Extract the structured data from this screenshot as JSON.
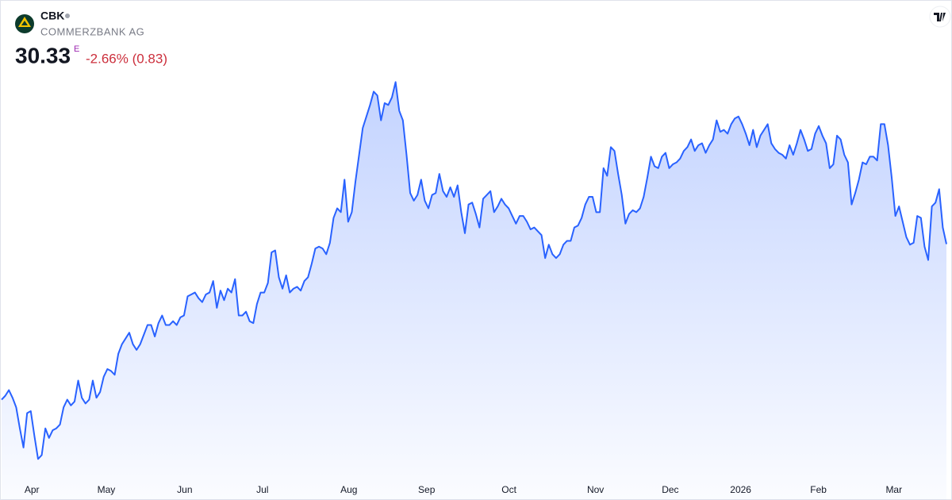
{
  "header": {
    "symbol": "CBK",
    "name": "COMMERZBANK AG",
    "price": "30.33",
    "price_flag": "E",
    "change": "-2.66% (0.83)"
  },
  "chart_data": {
    "type": "area",
    "series": [
      {
        "color": "#2962ff",
        "values": [
          22.2,
          22.4,
          22.7,
          22.3,
          21.8,
          20.7,
          19.7,
          21.5,
          21.6,
          20.3,
          19.1,
          19.3,
          20.7,
          20.2,
          20.6,
          20.7,
          20.9,
          21.8,
          22.2,
          21.9,
          22.1,
          23.2,
          22.3,
          22.0,
          22.2,
          23.2,
          22.3,
          22.6,
          23.4,
          23.8,
          23.7,
          23.5,
          24.6,
          25.1,
          25.4,
          25.7,
          25.1,
          24.8,
          25.1,
          25.6,
          26.1,
          26.1,
          25.5,
          26.2,
          26.6,
          26.1,
          26.1,
          26.3,
          26.1,
          26.5,
          26.6,
          27.6,
          27.7,
          27.8,
          27.5,
          27.3,
          27.7,
          27.8,
          28.4,
          27.0,
          27.9,
          27.4,
          28.0,
          27.8,
          28.5,
          26.6,
          26.6,
          26.8,
          26.3,
          26.2,
          27.2,
          27.8,
          27.8,
          28.3,
          29.9,
          30.0,
          28.6,
          28.0,
          28.7,
          27.8,
          28.0,
          28.1,
          27.9,
          28.4,
          28.6,
          29.3,
          30.1,
          30.2,
          30.1,
          29.8,
          30.4,
          31.7,
          32.2,
          32.0,
          33.7,
          31.5,
          32.0,
          33.6,
          35.0,
          36.4,
          37.0,
          37.6,
          38.3,
          38.1,
          36.8,
          37.7,
          37.6,
          38.0,
          38.8,
          37.3,
          36.8,
          35.0,
          33.0,
          32.6,
          32.9,
          33.7,
          32.6,
          32.2,
          32.9,
          33.0,
          34.0,
          33.1,
          32.8,
          33.3,
          32.8,
          33.4,
          32.0,
          30.9,
          32.4,
          32.5,
          31.9,
          31.2,
          32.7,
          32.9,
          33.1,
          32.0,
          32.3,
          32.7,
          32.4,
          32.2,
          31.8,
          31.4,
          31.8,
          31.8,
          31.5,
          31.1,
          31.2,
          31.0,
          30.8,
          29.6,
          30.3,
          29.8,
          29.6,
          29.8,
          30.3,
          30.5,
          30.5,
          31.2,
          31.3,
          31.7,
          32.4,
          32.8,
          32.8,
          32.0,
          32.0,
          34.3,
          33.9,
          35.4,
          35.2,
          34.0,
          32.9,
          31.4,
          31.9,
          32.1,
          32.0,
          32.2,
          32.8,
          33.8,
          34.9,
          34.4,
          34.3,
          34.9,
          35.1,
          34.3,
          34.5,
          34.6,
          34.8,
          35.2,
          35.4,
          35.8,
          35.2,
          35.5,
          35.6,
          35.1,
          35.5,
          35.8,
          36.8,
          36.2,
          36.3,
          36.1,
          36.6,
          36.9,
          37.0,
          36.6,
          36.1,
          35.5,
          36.3,
          35.4,
          36.0,
          36.3,
          36.6,
          35.6,
          35.3,
          35.1,
          35.0,
          34.8,
          35.5,
          35.0,
          35.6,
          36.3,
          35.8,
          35.2,
          35.3,
          36.1,
          36.5,
          36.0,
          35.6,
          34.3,
          34.5,
          36.0,
          35.8,
          35.0,
          34.6,
          32.4,
          33.0,
          33.7,
          34.6,
          34.5,
          34.9,
          34.9,
          34.7,
          36.6,
          36.6,
          35.5,
          33.8,
          31.8,
          32.3,
          31.5,
          30.7,
          30.3,
          30.4,
          31.8,
          31.7,
          30.2,
          29.5,
          32.3,
          32.5,
          33.2,
          31.2,
          30.33
        ]
      }
    ],
    "xlim": [
      0,
      259
    ],
    "ylim": [
      18.2,
      40.6
    ],
    "xticks": [
      {
        "value": 8.3,
        "label": "Apr"
      },
      {
        "value": 28.7,
        "label": "May"
      },
      {
        "value": 50.2,
        "label": "Jun"
      },
      {
        "value": 71.5,
        "label": "Jul"
      },
      {
        "value": 95.2,
        "label": "Aug"
      },
      {
        "value": 116.5,
        "label": "Sep"
      },
      {
        "value": 139.1,
        "label": "Oct"
      },
      {
        "value": 162.8,
        "label": "Nov"
      },
      {
        "value": 183.3,
        "label": "Dec"
      },
      {
        "value": 202.6,
        "label": "2026"
      },
      {
        "value": 223.9,
        "label": "Feb"
      },
      {
        "value": 244.6,
        "label": "Mar"
      }
    ],
    "grid": false
  }
}
